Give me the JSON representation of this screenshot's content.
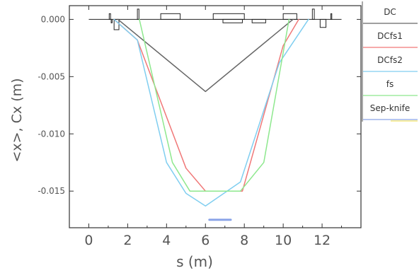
{
  "chart_data": {
    "type": "line",
    "xlabel": "s (m)",
    "ylabel": "<x>, Cx (m)",
    "xlim": [
      -1.0,
      14.0
    ],
    "ylim": [
      -0.0182,
      0.0012
    ],
    "xticks": [
      0,
      2,
      4,
      6,
      8,
      10,
      12
    ],
    "xtick_labels": [
      "0",
      "2",
      "4",
      "6",
      "8",
      "10",
      "12"
    ],
    "yticks": [
      0.0,
      -0.005,
      -0.01,
      -0.015
    ],
    "ytick_labels": [
      "0.000",
      "-0.005",
      "-0.010",
      "-0.015"
    ],
    "grid": false,
    "legend_position": "right",
    "series": [
      {
        "name": "DC",
        "color": "#666666",
        "x": [
          1.5,
          6.0,
          10.5
        ],
        "y": [
          0.0,
          -0.0063,
          0.0
        ]
      },
      {
        "name": "DCfs1",
        "color": "#f07878",
        "x": [
          1.3,
          2.5,
          5.0,
          6.0,
          7.9,
          10.0,
          10.8
        ],
        "y": [
          0.0,
          -0.0018,
          -0.013,
          -0.015,
          -0.015,
          -0.0023,
          0.0
        ]
      },
      {
        "name": "DCfs2",
        "color": "#80cef0",
        "x": [
          1.3,
          2.5,
          4.0,
          5.0,
          6.0,
          7.8,
          9.8,
          11.3
        ],
        "y": [
          0.0,
          -0.0018,
          -0.0125,
          -0.0152,
          -0.0163,
          -0.0142,
          -0.0038,
          0.0
        ]
      },
      {
        "name": "fs",
        "color": "#8ee88e",
        "x": [
          2.6,
          4.3,
          5.2,
          6.0,
          7.8,
          9.0,
          10.3
        ],
        "y": [
          0.0,
          -0.0125,
          -0.015,
          -0.015,
          -0.015,
          -0.0125,
          0.0
        ]
      },
      {
        "name": "Sep-knife",
        "color": "#8aa4e8",
        "x": [
          6.2,
          7.3
        ],
        "y": [
          -0.0175,
          -0.0175
        ]
      }
    ],
    "lattice_elements": [
      {
        "s0": 1.05,
        "s1": 1.12,
        "h": 0.0005
      },
      {
        "s0": 1.15,
        "s1": 1.2,
        "h": -0.0003
      },
      {
        "s0": 1.3,
        "s1": 1.55,
        "h": -0.0009
      },
      {
        "s0": 2.5,
        "s1": 2.58,
        "h": 0.0009
      },
      {
        "s0": 3.7,
        "s1": 4.7,
        "h": 0.0005
      },
      {
        "s0": 6.4,
        "s1": 8.0,
        "h": 0.0005
      },
      {
        "s0": 6.9,
        "s1": 7.9,
        "h": -0.0003
      },
      {
        "s0": 8.4,
        "s1": 9.1,
        "h": -0.0003
      },
      {
        "s0": 10.0,
        "s1": 10.7,
        "h": 0.0005
      },
      {
        "s0": 11.5,
        "s1": 11.6,
        "h": 0.0009
      },
      {
        "s0": 11.9,
        "s1": 12.2,
        "h": -0.0007
      },
      {
        "s0": 12.45,
        "s1": 12.5,
        "h": 0.0005
      }
    ]
  }
}
